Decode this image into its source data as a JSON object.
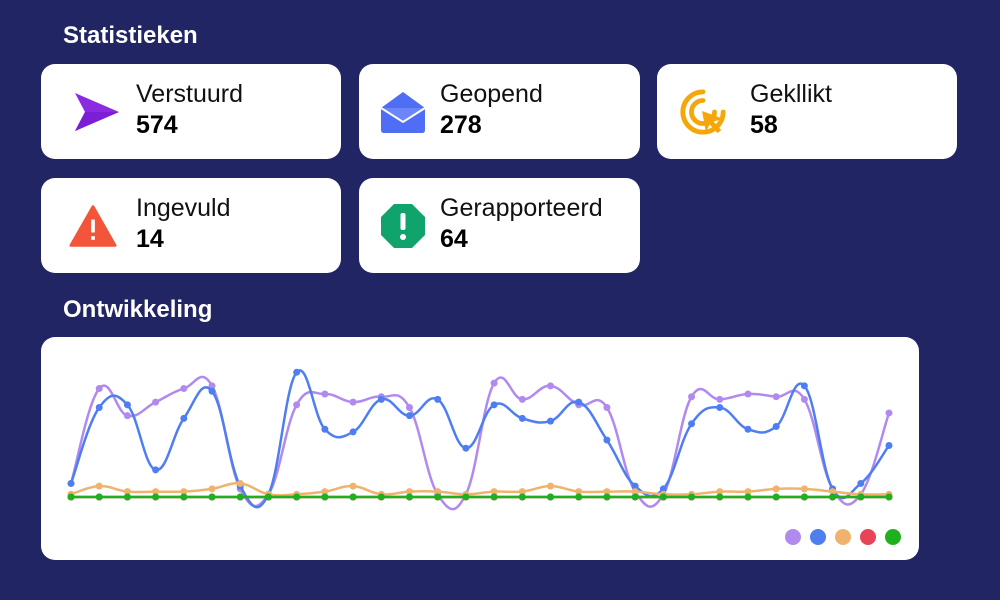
{
  "stats": {
    "title": "Statistieken",
    "cards": {
      "sent": {
        "label": "Verstuurd",
        "value": "574",
        "icon": "send-icon",
        "color": "#8a2be2"
      },
      "opened": {
        "label": "Geopend",
        "value": "278",
        "icon": "envelope-open-icon",
        "color": "#4f6df5"
      },
      "clicked": {
        "label": "Gekllikt",
        "value": "58",
        "icon": "cursor-click-icon",
        "color": "#f5a70a"
      },
      "filled": {
        "label": "Ingevuld",
        "value": "14",
        "icon": "warning-triangle-icon",
        "color": "#f2553a"
      },
      "reported": {
        "label": "Gerapporteerd",
        "value": "64",
        "icon": "octagon-alert-icon",
        "color": "#10a36b"
      }
    }
  },
  "development": {
    "title": "Ontwikkeling"
  },
  "chart_data": {
    "type": "line",
    "grid": false,
    "legend_placement": "bottom-right",
    "x": [
      1,
      2,
      3,
      4,
      5,
      6,
      7,
      8,
      9,
      10,
      11,
      12,
      13,
      14,
      15,
      16,
      17,
      18,
      19,
      20,
      21,
      22,
      23,
      24,
      25,
      26,
      27,
      28,
      29,
      30
    ],
    "ylim": [
      0,
      45
    ],
    "series": [
      {
        "color": "#b18af0",
        "values": [
          5,
          40,
          30,
          35,
          40,
          41,
          3,
          1,
          34,
          38,
          35,
          37,
          33,
          1,
          1,
          42,
          36,
          41,
          34,
          33,
          2,
          1,
          37,
          36,
          38,
          37,
          36,
          3,
          1,
          31
        ]
      },
      {
        "color": "#4f7ef0",
        "values": [
          5,
          33,
          34,
          10,
          29,
          39,
          4,
          1,
          46,
          25,
          24,
          36,
          30,
          36,
          18,
          34,
          29,
          28,
          35,
          21,
          4,
          3,
          27,
          33,
          25,
          26,
          41,
          3,
          5,
          19
        ]
      },
      {
        "color": "#f0b36e",
        "values": [
          1,
          4,
          2,
          2,
          2,
          3,
          5,
          1,
          1,
          2,
          4,
          1,
          2,
          2,
          1,
          2,
          2,
          4,
          2,
          2,
          2,
          1,
          1,
          2,
          2,
          3,
          3,
          2,
          1,
          1
        ]
      },
      {
        "color": "#e84357",
        "values": [
          0,
          0,
          0,
          0,
          0,
          0,
          0,
          0,
          0,
          0,
          0,
          0,
          0,
          0,
          0,
          0,
          0,
          0,
          0,
          0,
          0,
          0,
          0,
          0,
          0,
          0,
          0,
          0,
          0,
          0
        ]
      },
      {
        "color": "#1fb01f",
        "values": [
          0,
          0,
          0,
          0,
          0,
          0,
          0,
          0,
          0,
          0,
          0,
          0,
          0,
          0,
          0,
          0,
          0,
          0,
          0,
          0,
          0,
          0,
          0,
          0,
          0,
          0,
          0,
          0,
          0,
          0
        ]
      }
    ]
  }
}
